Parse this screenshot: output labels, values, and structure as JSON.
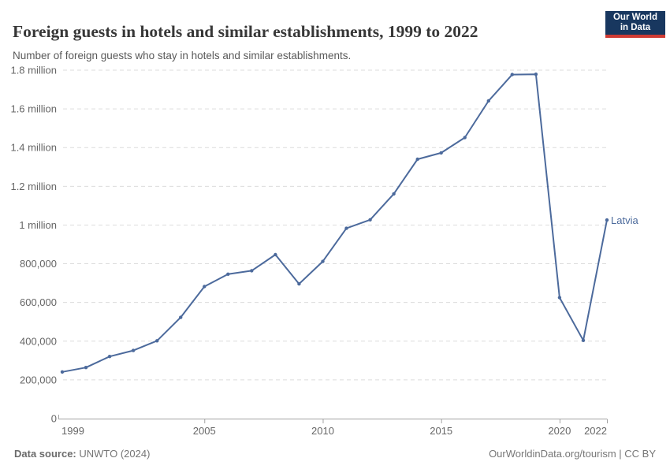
{
  "header": {
    "title": "Foreign guests in hotels and similar establishments, 1999 to 2022",
    "subtitle": "Number of foreign guests who stay in hotels and similar establishments."
  },
  "logo": {
    "line1": "Our World",
    "line2": "in Data",
    "bg": "#18375f",
    "accent": "#cf3b34"
  },
  "chart_data": {
    "type": "line",
    "title": "Foreign guests in hotels and similar establishments, 1999 to 2022",
    "xlabel": "",
    "ylabel": "",
    "x": [
      1999,
      2000,
      2001,
      2002,
      2003,
      2004,
      2005,
      2006,
      2007,
      2008,
      2009,
      2010,
      2011,
      2012,
      2013,
      2014,
      2015,
      2016,
      2017,
      2018,
      2019,
      2020,
      2021,
      2022
    ],
    "series": [
      {
        "name": "Latvia",
        "color": "#4C6A9C",
        "values": [
          241000,
          264000,
          321000,
          352000,
          402000,
          523000,
          682000,
          746000,
          764000,
          847000,
          696000,
          812000,
          983000,
          1027000,
          1161000,
          1340000,
          1373000,
          1452000,
          1641000,
          1777000,
          1779000,
          625000,
          404000,
          1026000
        ]
      }
    ],
    "xlim": [
      1999,
      2022
    ],
    "ylim": [
      0,
      1800000
    ],
    "x_ticks": [
      1999,
      2005,
      2010,
      2015,
      2020,
      2022
    ],
    "y_ticks": [
      {
        "value": 0,
        "label": "0"
      },
      {
        "value": 200000,
        "label": "200,000"
      },
      {
        "value": 400000,
        "label": "400,000"
      },
      {
        "value": 600000,
        "label": "600,000"
      },
      {
        "value": 800000,
        "label": "800,000"
      },
      {
        "value": 1000000,
        "label": "1 million"
      },
      {
        "value": 1200000,
        "label": "1.2 million"
      },
      {
        "value": 1400000,
        "label": "1.4 million"
      },
      {
        "value": 1600000,
        "label": "1.6 million"
      },
      {
        "value": 1800000,
        "label": "1.8 million"
      }
    ],
    "grid": "dashed-horizontal",
    "legend": "end-of-line-label",
    "grid_color": "#dcdcdc",
    "axis_color": "#a3a3a3",
    "tick_label_color": "#666666"
  },
  "footer": {
    "source_label": "Data source:",
    "source_value": "UNWTO (2024)",
    "credit": "OurWorldinData.org/tourism | CC BY"
  }
}
